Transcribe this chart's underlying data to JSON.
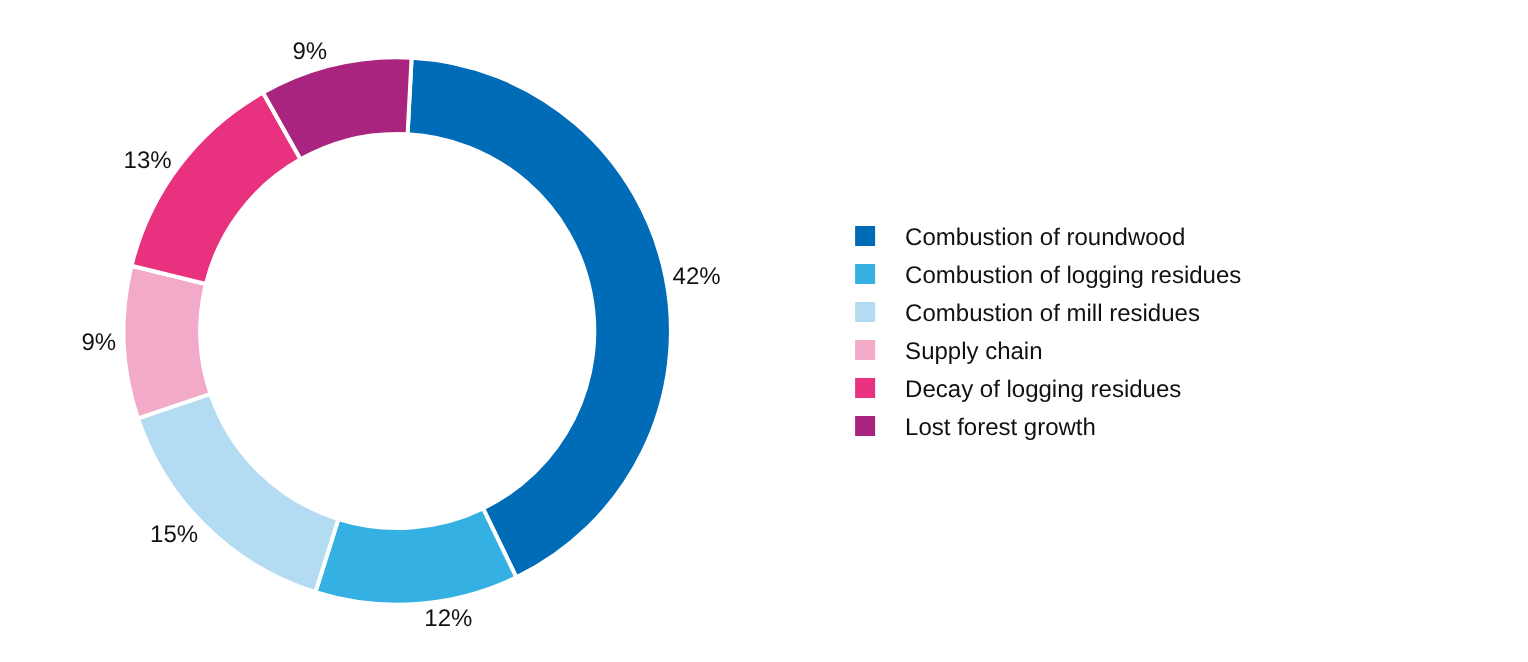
{
  "chart_data": {
    "type": "donut",
    "categories": [
      "Combustion of roundwood",
      "Combustion of logging residues",
      "Combustion of mill residues",
      "Supply chain",
      "Decay of logging residues",
      "Lost forest growth"
    ],
    "values": [
      42,
      12,
      15,
      9,
      13,
      9
    ],
    "value_labels": [
      "42%",
      "12%",
      "15%",
      "9%",
      "13%",
      "9%"
    ],
    "colors": [
      "#006bb6",
      "#35b0e3",
      "#b3dcf2",
      "#f2aac8",
      "#e8317f",
      "#a8247f"
    ],
    "legend": "right"
  }
}
